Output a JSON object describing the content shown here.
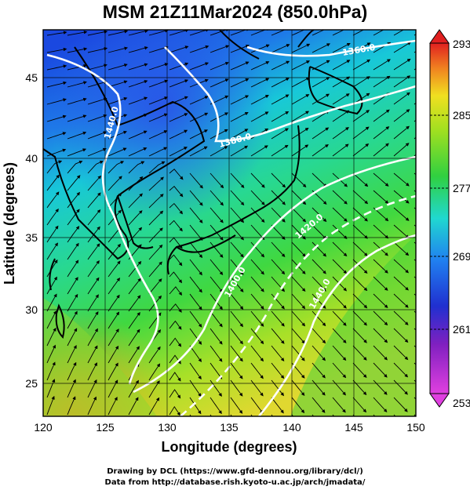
{
  "title": "MSM 21Z11Mar2024 (850.0hPa)",
  "axes": {
    "xlabel": "Longitude (degrees)",
    "ylabel": "Latitude  (degrees)",
    "x_ticks": [
      "120",
      "125",
      "130",
      "135",
      "140",
      "145",
      "150"
    ],
    "y_ticks": [
      "25",
      "30",
      "35",
      "40",
      "45"
    ],
    "x_range": [
      120,
      150
    ],
    "y_range": [
      22.4,
      47.6
    ]
  },
  "colorbar": {
    "ticks": [
      "293",
      "285",
      "277",
      "269",
      "261",
      "253"
    ],
    "range": [
      253,
      293
    ],
    "unit_hint": "temperature (K)"
  },
  "contours": {
    "labels": [
      "1360.0",
      "1440.0",
      "1380.0",
      "1400.0",
      "1420.0",
      "1440.0"
    ]
  },
  "footer": {
    "line1": "Drawing by DCL (https://www.gfd-dennou.org/library/dcl/)",
    "line2": "Data from http://database.rish.kyoto-u.ac.jp/arch/jmadata/"
  },
  "colors": {
    "cold": "#1e50d8",
    "cool": "#20d0d8",
    "mild": "#30d040",
    "warm": "#d8d830",
    "hot": "#f08020"
  }
}
